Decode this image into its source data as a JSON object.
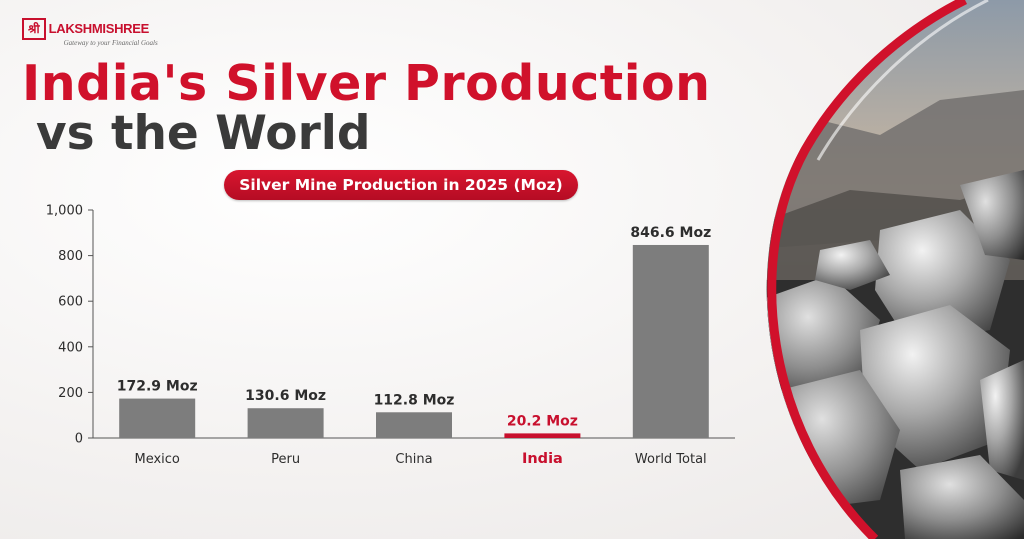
{
  "brand": {
    "mark": "श्री",
    "name": "LAKSHMISHREE",
    "tagline": "Gateway to your Financial Goals"
  },
  "title_line1": "India's Silver Production",
  "title_line2": "vs the World",
  "colors": {
    "accent": "#d0112b",
    "bar": "#7d7d7d",
    "highlight_bar": "#c8102e",
    "title_dark": "#3a3a3a"
  },
  "chart_data": {
    "type": "bar",
    "title": "Silver Mine Production in 2025 (Moz)",
    "categories": [
      "Mexico",
      "Peru",
      "China",
      "India",
      "World Total"
    ],
    "values": [
      172.9,
      130.6,
      112.8,
      20.2,
      846.6
    ],
    "data_labels": [
      "172.9 Moz",
      "130.6 Moz",
      "112.8 Moz",
      "20.2 Moz",
      "846.6 Moz"
    ],
    "highlight": "India",
    "ylim": [
      0,
      1000
    ],
    "yticks": [
      0,
      200,
      400,
      600,
      800,
      1000
    ],
    "ytick_labels": [
      "0",
      "200",
      "400",
      "600",
      "800",
      "1,000"
    ],
    "xlabel": "",
    "ylabel": "",
    "grid": false
  }
}
